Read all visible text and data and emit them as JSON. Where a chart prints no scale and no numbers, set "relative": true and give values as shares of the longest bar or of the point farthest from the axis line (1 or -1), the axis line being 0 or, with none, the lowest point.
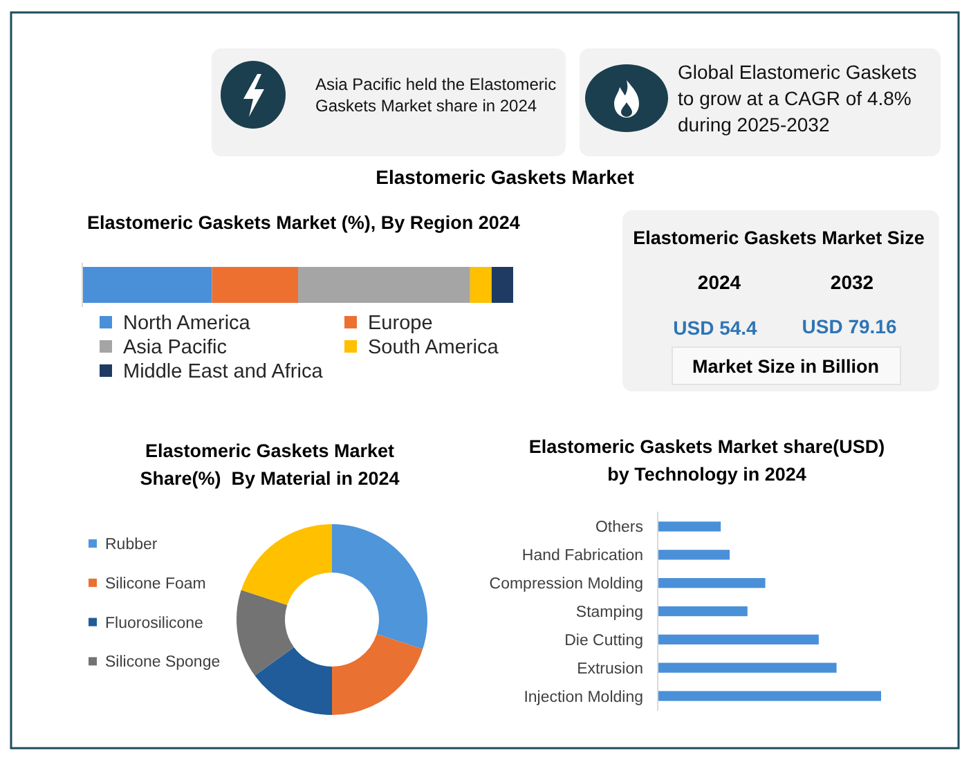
{
  "chart_data": [
    {
      "type": "other",
      "title": "Elastomeric Gaskets Market",
      "annotations": [
        "Asia Pacific held the Elastomeric Gaskets Market share in 2024",
        "Global Elastomeric Gaskets to grow at a CAGR of 4.8% during 2025-2032"
      ]
    },
    {
      "type": "bar",
      "title": "Elastomeric Gaskets Market (%), By Region 2024",
      "orientation": "horizontal",
      "stacked": true,
      "relative": true,
      "categories": [
        null
      ],
      "series": [
        {
          "name": "North America",
          "color": "#4a90d9",
          "values": [
            0.3
          ]
        },
        {
          "name": "Europe",
          "color": "#ed7031",
          "values": [
            0.2
          ]
        },
        {
          "name": "Asia Pacific",
          "color": "#a5a5a5",
          "values": [
            0.4
          ]
        },
        {
          "name": "South America",
          "color": "#ffc000",
          "values": [
            0.05
          ]
        },
        {
          "name": "Middle East and Africa",
          "color": "#1f3b63",
          "values": [
            0.05
          ]
        }
      ],
      "legend": "bottom"
    },
    {
      "type": "other",
      "title": "Elastomeric Gaskets Market Size",
      "annotations": [
        "2024",
        "2032",
        "USD 54.4",
        "USD 79.16",
        "Market Size in Billion"
      ]
    },
    {
      "type": "donut",
      "title": "Elastomeric Gaskets Market Share(%)  By Material in 2024",
      "categories": [
        "Rubber",
        "Silicone Foam",
        "Fluorosilicone",
        "Silicone Sponge",
        null
      ],
      "values": [
        30,
        20,
        15,
        15,
        20
      ],
      "colors": [
        "#4e95d9",
        "#e97132",
        "#1f5c99",
        "#737373",
        "#ffc000"
      ],
      "legend": "left"
    },
    {
      "type": "bar",
      "title": "Elastomeric Gaskets Market share(USD) by Technology in 2024",
      "orientation": "horizontal",
      "relative": true,
      "categories": [
        "Others",
        "Hand Fabrication",
        "Compression Molding",
        "Stamping",
        "Die Cutting",
        "Extrusion",
        "Injection Molding"
      ],
      "values": [
        0.28,
        0.32,
        0.48,
        0.4,
        0.72,
        0.8,
        1
      ],
      "color": "#4a90d9"
    }
  ]
}
